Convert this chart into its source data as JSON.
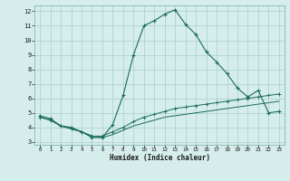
{
  "xlabel": "Humidex (Indice chaleur)",
  "bg_color": "#d5edeb",
  "grid_color": "#aed4cf",
  "line_color": "#1a6b5a",
  "xlim": [
    -0.5,
    23.5
  ],
  "ylim": [
    2.8,
    12.4
  ],
  "xticks": [
    0,
    1,
    2,
    3,
    4,
    5,
    6,
    7,
    8,
    9,
    10,
    11,
    12,
    13,
    14,
    15,
    16,
    17,
    18,
    19,
    20,
    21,
    22,
    23
  ],
  "yticks": [
    3,
    4,
    5,
    6,
    7,
    8,
    9,
    10,
    11,
    12
  ],
  "main_x": [
    0,
    1,
    2,
    3,
    4,
    5,
    6,
    7,
    8,
    9,
    10,
    11,
    12,
    13,
    14,
    15,
    16,
    17,
    18,
    19,
    20,
    21,
    22,
    23
  ],
  "main_y": [
    4.8,
    4.6,
    4.1,
    4.0,
    3.7,
    3.3,
    3.3,
    4.2,
    6.2,
    9.0,
    11.0,
    11.35,
    11.8,
    12.1,
    11.1,
    10.4,
    9.2,
    8.5,
    7.7,
    6.7,
    6.1,
    6.55,
    5.0,
    5.1
  ],
  "line2_x": [
    0,
    1,
    2,
    3,
    4,
    5,
    6,
    7,
    8,
    9,
    10,
    11,
    12,
    13,
    14,
    15,
    16,
    17,
    18,
    19,
    20,
    21,
    22,
    23
  ],
  "line2_y": [
    4.7,
    4.5,
    4.1,
    3.9,
    3.7,
    3.4,
    3.4,
    3.7,
    4.0,
    4.4,
    4.7,
    4.9,
    5.1,
    5.3,
    5.4,
    5.5,
    5.6,
    5.7,
    5.8,
    5.9,
    6.0,
    6.1,
    6.2,
    6.3
  ],
  "line3_x": [
    0,
    1,
    2,
    3,
    4,
    5,
    6,
    7,
    8,
    9,
    10,
    11,
    12,
    13,
    14,
    15,
    16,
    17,
    18,
    19,
    20,
    21,
    22,
    23
  ],
  "line3_y": [
    4.7,
    4.5,
    4.1,
    3.9,
    3.7,
    3.4,
    3.3,
    3.5,
    3.8,
    4.1,
    4.3,
    4.5,
    4.7,
    4.8,
    4.9,
    5.0,
    5.1,
    5.2,
    5.3,
    5.4,
    5.5,
    5.6,
    5.7,
    5.8
  ]
}
